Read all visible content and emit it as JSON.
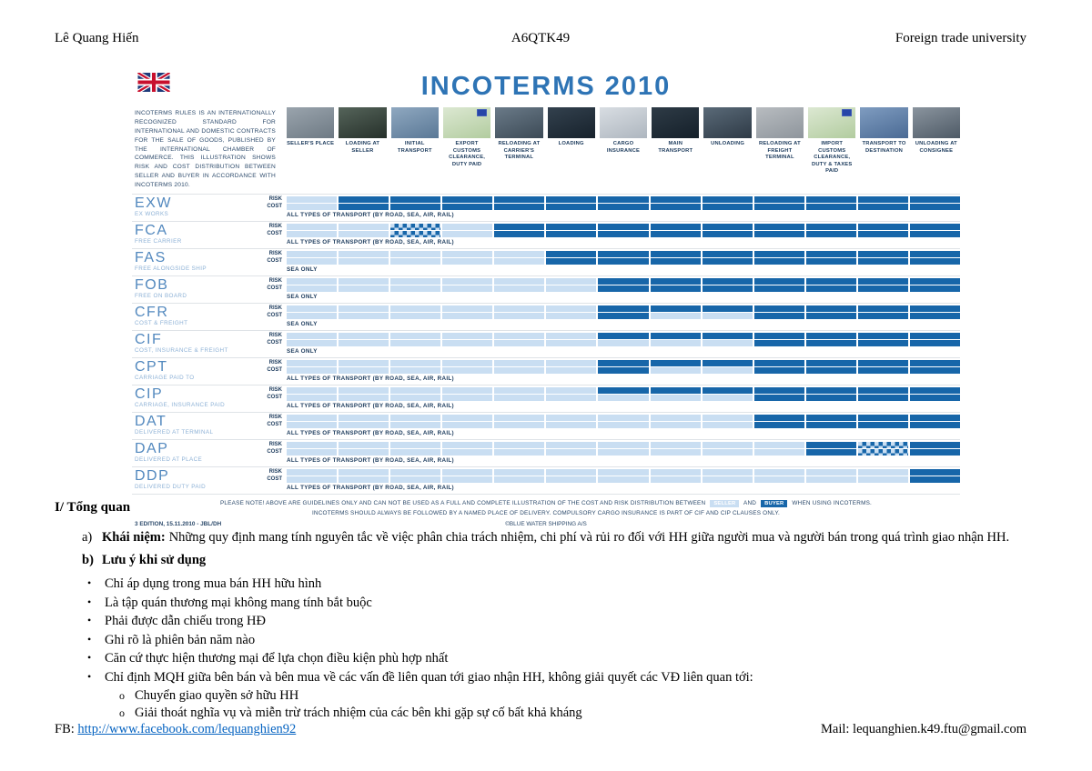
{
  "header": {
    "author": "Lê Quang Hiến",
    "class_code": "A6QTK49",
    "university": "Foreign trade university"
  },
  "chart": {
    "title": "INCOTERMS 2010",
    "intro": "Incoterms rules is an internationally recognized standard for international and domestic contracts for the sale of goods, published by the International Chamber of Commerce. This illustration shows risk and cost distribution between seller and buyer in accordance with Incoterms 2010.",
    "bar_labels": {
      "risk": "Risk",
      "cost": "Cost"
    },
    "colors": {
      "seller": "#c9def2",
      "buyer": "#1766a9",
      "title_blue": "#2e74b5"
    },
    "columns": [
      {
        "label": "Seller's place",
        "photo": [
          "#9aa4ad",
          "#6e7a84"
        ],
        "badge": false
      },
      {
        "label": "Loading at seller",
        "photo": [
          "#55645a",
          "#26302a"
        ],
        "badge": false
      },
      {
        "label": "Initial transport",
        "photo": [
          "#8fa8c0",
          "#5a7896"
        ],
        "badge": false
      },
      {
        "label": "Export customs clearance, duty paid",
        "photo": [
          "#dce8d2",
          "#b2cc9f"
        ],
        "badge": true
      },
      {
        "label": "Reloading at carrier's terminal",
        "photo": [
          "#6a7a88",
          "#3c4a56"
        ],
        "badge": false
      },
      {
        "label": "Loading",
        "photo": [
          "#33414e",
          "#17222c"
        ],
        "badge": false
      },
      {
        "label": "Cargo insurance",
        "photo": [
          "#d8dde2",
          "#aeb6bf"
        ],
        "badge": false
      },
      {
        "label": "Main transport",
        "photo": [
          "#2e3b46",
          "#15202a"
        ],
        "badge": false
      },
      {
        "label": "Unloading",
        "photo": [
          "#5a6a78",
          "#2e3a46"
        ],
        "badge": false
      },
      {
        "label": "Reloading at freight terminal",
        "photo": [
          "#b8bcc0",
          "#8e959c"
        ],
        "badge": false
      },
      {
        "label": "Import customs clearance, duty & taxes paid",
        "photo": [
          "#dce8d2",
          "#b2cc9f"
        ],
        "badge": true
      },
      {
        "label": "Transport to destination",
        "photo": [
          "#7f9cc0",
          "#4a6a94"
        ],
        "badge": false
      },
      {
        "label": "Unloading at consignee",
        "photo": [
          "#8a949e",
          "#4e5a66"
        ],
        "badge": false
      }
    ],
    "rows": [
      {
        "code": "EXW",
        "name": "Ex Works",
        "mode": "All types of transport (by road, sea, air, rail)",
        "risk": [
          "S",
          "B",
          "B",
          "B",
          "B",
          "B",
          "B",
          "B",
          "B",
          "B",
          "B",
          "B",
          "B"
        ],
        "cost": [
          "S",
          "B",
          "B",
          "B",
          "B",
          "B",
          "B",
          "B",
          "B",
          "B",
          "B",
          "B",
          "B"
        ]
      },
      {
        "code": "FCA",
        "name": "Free Carrier",
        "mode": "All types of transport (by road, sea, air, rail)",
        "risk": [
          "S",
          "S",
          "C",
          "S",
          "B",
          "B",
          "B",
          "B",
          "B",
          "B",
          "B",
          "B",
          "B"
        ],
        "cost": [
          "S",
          "S",
          "C",
          "S",
          "B",
          "B",
          "B",
          "B",
          "B",
          "B",
          "B",
          "B",
          "B"
        ]
      },
      {
        "code": "FAS",
        "name": "Free Alongside Ship",
        "mode": "Sea only",
        "risk": [
          "S",
          "S",
          "S",
          "S",
          "S",
          "B",
          "B",
          "B",
          "B",
          "B",
          "B",
          "B",
          "B"
        ],
        "cost": [
          "S",
          "S",
          "S",
          "S",
          "S",
          "B",
          "B",
          "B",
          "B",
          "B",
          "B",
          "B",
          "B"
        ]
      },
      {
        "code": "FOB",
        "name": "Free On Board",
        "mode": "Sea only",
        "risk": [
          "S",
          "S",
          "S",
          "S",
          "S",
          "S",
          "B",
          "B",
          "B",
          "B",
          "B",
          "B",
          "B"
        ],
        "cost": [
          "S",
          "S",
          "S",
          "S",
          "S",
          "S",
          "B",
          "B",
          "B",
          "B",
          "B",
          "B",
          "B"
        ]
      },
      {
        "code": "CFR",
        "name": "Cost & Freight",
        "mode": "Sea only",
        "risk": [
          "S",
          "S",
          "S",
          "S",
          "S",
          "S",
          "B",
          "B",
          "B",
          "B",
          "B",
          "B",
          "B"
        ],
        "cost": [
          "S",
          "S",
          "S",
          "S",
          "S",
          "S",
          "B",
          "S",
          "S",
          "B",
          "B",
          "B",
          "B"
        ]
      },
      {
        "code": "CIF",
        "name": "Cost, Insurance & Freight",
        "mode": "Sea only",
        "risk": [
          "S",
          "S",
          "S",
          "S",
          "S",
          "S",
          "B",
          "B",
          "B",
          "B",
          "B",
          "B",
          "B"
        ],
        "cost": [
          "S",
          "S",
          "S",
          "S",
          "S",
          "S",
          "S",
          "S",
          "S",
          "B",
          "B",
          "B",
          "B"
        ]
      },
      {
        "code": "CPT",
        "name": "Carriage Paid To",
        "mode": "All types of transport (by road, sea, air, rail)",
        "risk": [
          "S",
          "S",
          "S",
          "S",
          "S",
          "S",
          "B",
          "B",
          "B",
          "B",
          "B",
          "B",
          "B"
        ],
        "cost": [
          "S",
          "S",
          "S",
          "S",
          "S",
          "S",
          "B",
          "S",
          "S",
          "B",
          "B",
          "B",
          "B"
        ]
      },
      {
        "code": "CIP",
        "name": "Carriage, Insurance Paid",
        "mode": "All types of transport (by road, sea, air, rail)",
        "risk": [
          "S",
          "S",
          "S",
          "S",
          "S",
          "S",
          "B",
          "B",
          "B",
          "B",
          "B",
          "B",
          "B"
        ],
        "cost": [
          "S",
          "S",
          "S",
          "S",
          "S",
          "S",
          "S",
          "S",
          "S",
          "B",
          "B",
          "B",
          "B"
        ]
      },
      {
        "code": "DAT",
        "name": "Delivered At Terminal",
        "mode": "All types of transport (by road, sea, air, rail)",
        "risk": [
          "S",
          "S",
          "S",
          "S",
          "S",
          "S",
          "S",
          "S",
          "S",
          "B",
          "B",
          "B",
          "B"
        ],
        "cost": [
          "S",
          "S",
          "S",
          "S",
          "S",
          "S",
          "S",
          "S",
          "S",
          "B",
          "B",
          "B",
          "B"
        ]
      },
      {
        "code": "DAP",
        "name": "Delivered At Place",
        "mode": "All types of transport (by road, sea, air, rail)",
        "risk": [
          "S",
          "S",
          "S",
          "S",
          "S",
          "S",
          "S",
          "S",
          "S",
          "S",
          "B",
          "C",
          "B"
        ],
        "cost": [
          "S",
          "S",
          "S",
          "S",
          "S",
          "S",
          "S",
          "S",
          "S",
          "S",
          "B",
          "C",
          "B"
        ]
      },
      {
        "code": "DDP",
        "name": "Delivered Duty Paid",
        "mode": "All types of transport (by road, sea, air, rail)",
        "risk": [
          "S",
          "S",
          "S",
          "S",
          "S",
          "S",
          "S",
          "S",
          "S",
          "S",
          "S",
          "S",
          "B"
        ],
        "cost": [
          "S",
          "S",
          "S",
          "S",
          "S",
          "S",
          "S",
          "S",
          "S",
          "S",
          "S",
          "S",
          "B"
        ]
      }
    ],
    "notes": {
      "line1_pre": "Please note! Above are guidelines only and can not be used as a full and complete illustration of the cost and risk distribution between",
      "seller_chip": "Seller",
      "line1_mid": "and",
      "buyer_chip": "Buyer",
      "line1_post": "when using Incoterms.",
      "line2": "Incoterms should always be followed by a named place of delivery. Compulsory cargo insurance is part of CIF and CIP clauses only.",
      "edition": "3 edition, 15.11.2010 - JBL/DH",
      "copyright": "©Blue Water Shipping A/S"
    }
  },
  "body": {
    "section_title": "I/ Tổng quan",
    "item_a": {
      "marker": "a)",
      "label": "Khái niệm:",
      "text": "Những quy định mang tính nguyên tắc về việc phân chia trách nhiệm, chi phí và rủi ro đối với HH giữa người mua và người bán trong quá trình giao nhận HH."
    },
    "item_b": {
      "marker": "b)",
      "label": "Lưu ý khi sử dụng"
    },
    "bullet_marker": "•",
    "sub_bullet_marker": "o",
    "bullets": [
      "Chỉ áp dụng trong mua bán HH hữu hình",
      "Là tập quán thương mại không mang tính bắt buộc",
      "Phải được dẫn chiếu trong HĐ",
      "Ghi rõ là phiên bản năm nào",
      "Căn cứ thực hiện thương mại để lựa chọn điều kiện phù hợp nhất",
      "Chỉ định MQH giữa bên bán và bên mua về các vấn đề liên quan tới giao nhận HH, không giải quyết các VĐ liên quan tới:"
    ],
    "sub_bullets": [
      "Chuyển giao quyền sở hữu HH",
      "Giải thoát nghĩa vụ và miễn trừ trách nhiệm của các bên khi gặp sự cố bất khả kháng"
    ]
  },
  "footer": {
    "fb_label": "FB: ",
    "fb_url": "http://www.facebook.com/lequanghien92",
    "mail": "Mail: lequanghien.k49.ftu@gmail.com"
  }
}
